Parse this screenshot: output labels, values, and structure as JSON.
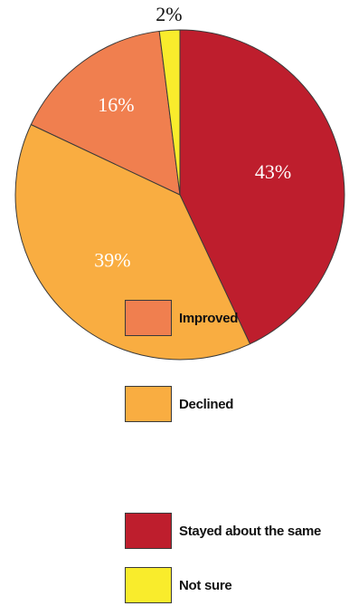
{
  "chart_data": {
    "type": "pie",
    "title": "",
    "slices": [
      {
        "label": "Improved",
        "value": 16,
        "display": "16%",
        "color": "#f07f4f"
      },
      {
        "label": "Declined",
        "value": 39,
        "display": "39%",
        "color": "#f9ad41"
      },
      {
        "label": "Stayed about the same",
        "value": 43,
        "display": "43%",
        "color": "#be1e2d"
      },
      {
        "label": "Not sure",
        "value": 2,
        "display": "2%",
        "color": "#f9ec2c"
      }
    ],
    "legend_position": "bottom-right"
  }
}
